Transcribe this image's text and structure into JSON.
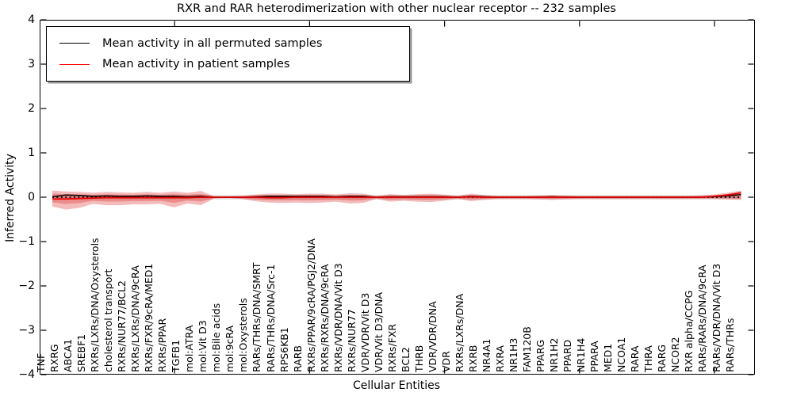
{
  "title": "RXR and RAR heterodimerization with other nuclear receptor -- 232 samples",
  "axes": {
    "xlabel": "Cellular Entities",
    "ylabel": "Inferred Activity"
  },
  "legend": {
    "position": "upper left",
    "items": [
      {
        "label": "Mean activity in all permuted samples",
        "color": "#000000"
      },
      {
        "label": "Mean activity in patient samples",
        "color": "#ff0000"
      }
    ]
  },
  "chart_data": {
    "type": "line",
    "title": "RXR and RAR heterodimerization with other nuclear receptor -- 232 samples",
    "xlabel": "Cellular Entities",
    "ylabel": "Inferred Activity",
    "ylim": [
      -4,
      4
    ],
    "yticks": [
      4,
      3,
      2,
      1,
      0,
      -1,
      -2,
      -3,
      -4
    ],
    "xticks_numeric": [
      10,
      20,
      30,
      40,
      50
    ],
    "grid": false,
    "zero_line": {
      "style": "dotted",
      "color": "#000000",
      "y": 0
    },
    "categories": [
      "TNF",
      "RXRG",
      "ABCA1",
      "SREBF1",
      "RXRs/LXRs/DNA/Oxysterols",
      "cholesterol transport",
      "RXRs/NUR77/BCL2",
      "RXRs/LXRs/DNA/9cRA",
      "RXRs/FXR/9cRA/MED1",
      "RXRs/PPAR",
      "TGFB1",
      "mol:ATRA",
      "mol:Vit D3",
      "mol:Bile acids",
      "mol:9cRA",
      "mol:Oxysterols",
      "RARs/THRs/DNA/SMRT",
      "RARs/THRs/DNA/Src-1",
      "RPS6KB1",
      "RARB",
      "RXRs/PPAR/9cRA/PGJ2/DNA",
      "RXRs/RXRs/DNA/9cRA",
      "RXRs/VDR/DNA/Vit D3",
      "RXRs/NUR77",
      "VDR/VDR/Vit D3",
      "VDR/Vit D3/DNA",
      "RXRs/FXR",
      "BCL2",
      "THRB",
      "VDR/VDR/DNA",
      "VDR",
      "RXRs/LXRs/DNA",
      "RXRB",
      "NR4A1",
      "RXRA",
      "NR1H3",
      "FAM120B",
      "PPARG",
      "NR1H2",
      "PPARD",
      "NR1H4",
      "PPARA",
      "MED1",
      "NCOA1",
      "RARA",
      "THRA",
      "RARG",
      "NCOR2",
      "RXR alpha/CCPG",
      "RARs/RARs/DNA/9cRA",
      "RARs/VDR/DNA/Vit D3",
      "RARs/THRs"
    ],
    "series": [
      {
        "name": "Mean activity in all permuted samples",
        "color": "#000000",
        "values": [
          0.01,
          0.05,
          0.04,
          0.02,
          0.03,
          0.02,
          0.02,
          0.03,
          0.02,
          0.02,
          0.01,
          0.02,
          0.0,
          0.0,
          0.0,
          0.01,
          0.02,
          0.02,
          0.02,
          0.02,
          0.02,
          0.01,
          0.02,
          0.02,
          0.0,
          0.01,
          0.01,
          0.01,
          0.01,
          0.01,
          0.0,
          0.02,
          0.01,
          0.0,
          0.0,
          0.0,
          0.0,
          0.01,
          0.0,
          0.0,
          0.0,
          0.0,
          0.0,
          0.0,
          0.0,
          0.0,
          0.0,
          0.0,
          0.0,
          0.01,
          0.03,
          0.06
        ]
      },
      {
        "name": "Mean activity in patient samples",
        "color": "#e60000",
        "values": [
          -0.04,
          -0.04,
          -0.03,
          -0.02,
          -0.01,
          -0.01,
          -0.01,
          -0.01,
          -0.01,
          -0.01,
          -0.01,
          0.0,
          0.0,
          0.0,
          0.0,
          0.0,
          -0.01,
          -0.01,
          0.0,
          0.0,
          0.0,
          0.0,
          0.0,
          0.0,
          0.0,
          0.0,
          0.0,
          0.0,
          0.0,
          0.0,
          0.0,
          0.01,
          0.0,
          0.0,
          0.0,
          0.0,
          0.0,
          0.0,
          0.0,
          0.0,
          0.0,
          0.0,
          0.0,
          0.0,
          0.0,
          0.0,
          0.0,
          0.0,
          0.0,
          0.02,
          0.05,
          0.1
        ]
      }
    ],
    "bands": [
      {
        "name": "patient-std-outer",
        "color": "#de2d2d",
        "alpha": 0.32,
        "upper": [
          0.15,
          0.13,
          0.12,
          0.1,
          0.12,
          0.11,
          0.1,
          0.12,
          0.1,
          0.13,
          0.1,
          0.14,
          0.02,
          0.02,
          0.03,
          0.06,
          0.08,
          0.08,
          0.07,
          0.08,
          0.08,
          0.06,
          0.09,
          0.08,
          0.03,
          0.07,
          0.05,
          0.07,
          0.08,
          0.06,
          0.03,
          0.08,
          0.05,
          0.03,
          0.03,
          0.03,
          0.04,
          0.05,
          0.04,
          0.03,
          0.03,
          0.03,
          0.03,
          0.03,
          0.03,
          0.03,
          0.03,
          0.03,
          0.04,
          0.06,
          0.1,
          0.15
        ],
        "lower": [
          -0.21,
          -0.28,
          -0.24,
          -0.15,
          -0.18,
          -0.18,
          -0.16,
          -0.16,
          -0.15,
          -0.23,
          -0.14,
          -0.18,
          -0.03,
          -0.02,
          -0.04,
          -0.09,
          -0.12,
          -0.13,
          -0.12,
          -0.13,
          -0.12,
          -0.1,
          -0.14,
          -0.13,
          -0.04,
          -0.1,
          -0.08,
          -0.1,
          -0.11,
          -0.08,
          -0.04,
          -0.09,
          -0.06,
          -0.04,
          -0.04,
          -0.04,
          -0.05,
          -0.06,
          -0.05,
          -0.04,
          -0.04,
          -0.04,
          -0.04,
          -0.04,
          -0.04,
          -0.04,
          -0.04,
          -0.04,
          -0.04,
          -0.04,
          -0.05,
          -0.06
        ]
      },
      {
        "name": "patient-std-inner",
        "color": "#de2d2d",
        "alpha": 0.32,
        "scale_of_outer": 0.55
      },
      {
        "name": "permuted-std",
        "color": "#787878",
        "alpha": 0.22,
        "halfwidth": 0.05
      }
    ]
  }
}
